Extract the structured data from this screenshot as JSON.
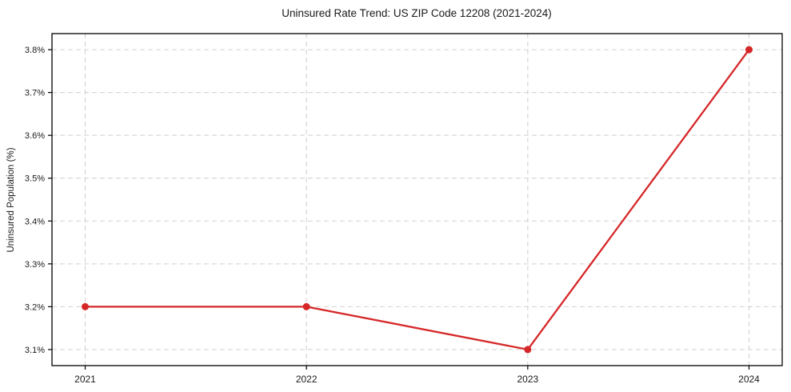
{
  "page": {
    "background": "#ffffff"
  },
  "chart_data": {
    "type": "line",
    "title": "Uninsured Rate Trend: US ZIP Code 12208 (2021-2024)",
    "xlabel": "",
    "ylabel": "Uninsured Population (%)",
    "x": [
      2021,
      2022,
      2023,
      2024
    ],
    "x_tick_labels": [
      "2021",
      "2022",
      "2023",
      "2024"
    ],
    "values": [
      3.2,
      3.2,
      3.1,
      3.8
    ],
    "y_ticks": [
      3.1,
      3.2,
      3.3,
      3.4,
      3.5,
      3.6,
      3.7,
      3.8
    ],
    "y_tick_labels": [
      "3.1%",
      "3.2%",
      "3.3%",
      "3.4%",
      "3.5%",
      "3.6%",
      "3.7%",
      "3.8%"
    ],
    "xlim": [
      2020.85,
      2024.15
    ],
    "ylim": [
      3.0625,
      3.8375
    ],
    "grid": true,
    "grid_color": "#d0d0d0",
    "grid_style": "dashed",
    "line_color": "#d62728",
    "marker": "circle",
    "marker_color": "#d62728",
    "axes_color": "#000000",
    "legend_position": "none"
  }
}
